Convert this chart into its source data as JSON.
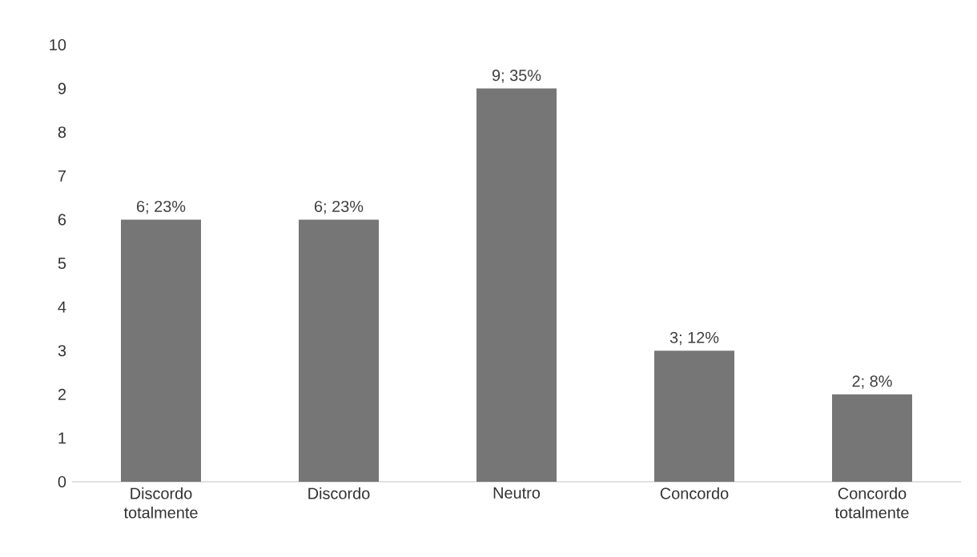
{
  "chart_data": {
    "type": "bar",
    "categories": [
      "Discordo totalmente",
      "Discordo",
      "Neutro",
      "Concordo",
      "Concordo totalmente"
    ],
    "values": [
      6,
      6,
      9,
      3,
      2
    ],
    "value_labels": [
      "6; 23%",
      "6; 23%",
      "9; 35%",
      "3; 12%",
      "2; 8%"
    ],
    "color": "#767676",
    "ylim": [
      0,
      10
    ],
    "yticks": [
      0,
      1,
      2,
      3,
      4,
      5,
      6,
      7,
      8,
      9,
      10
    ]
  }
}
